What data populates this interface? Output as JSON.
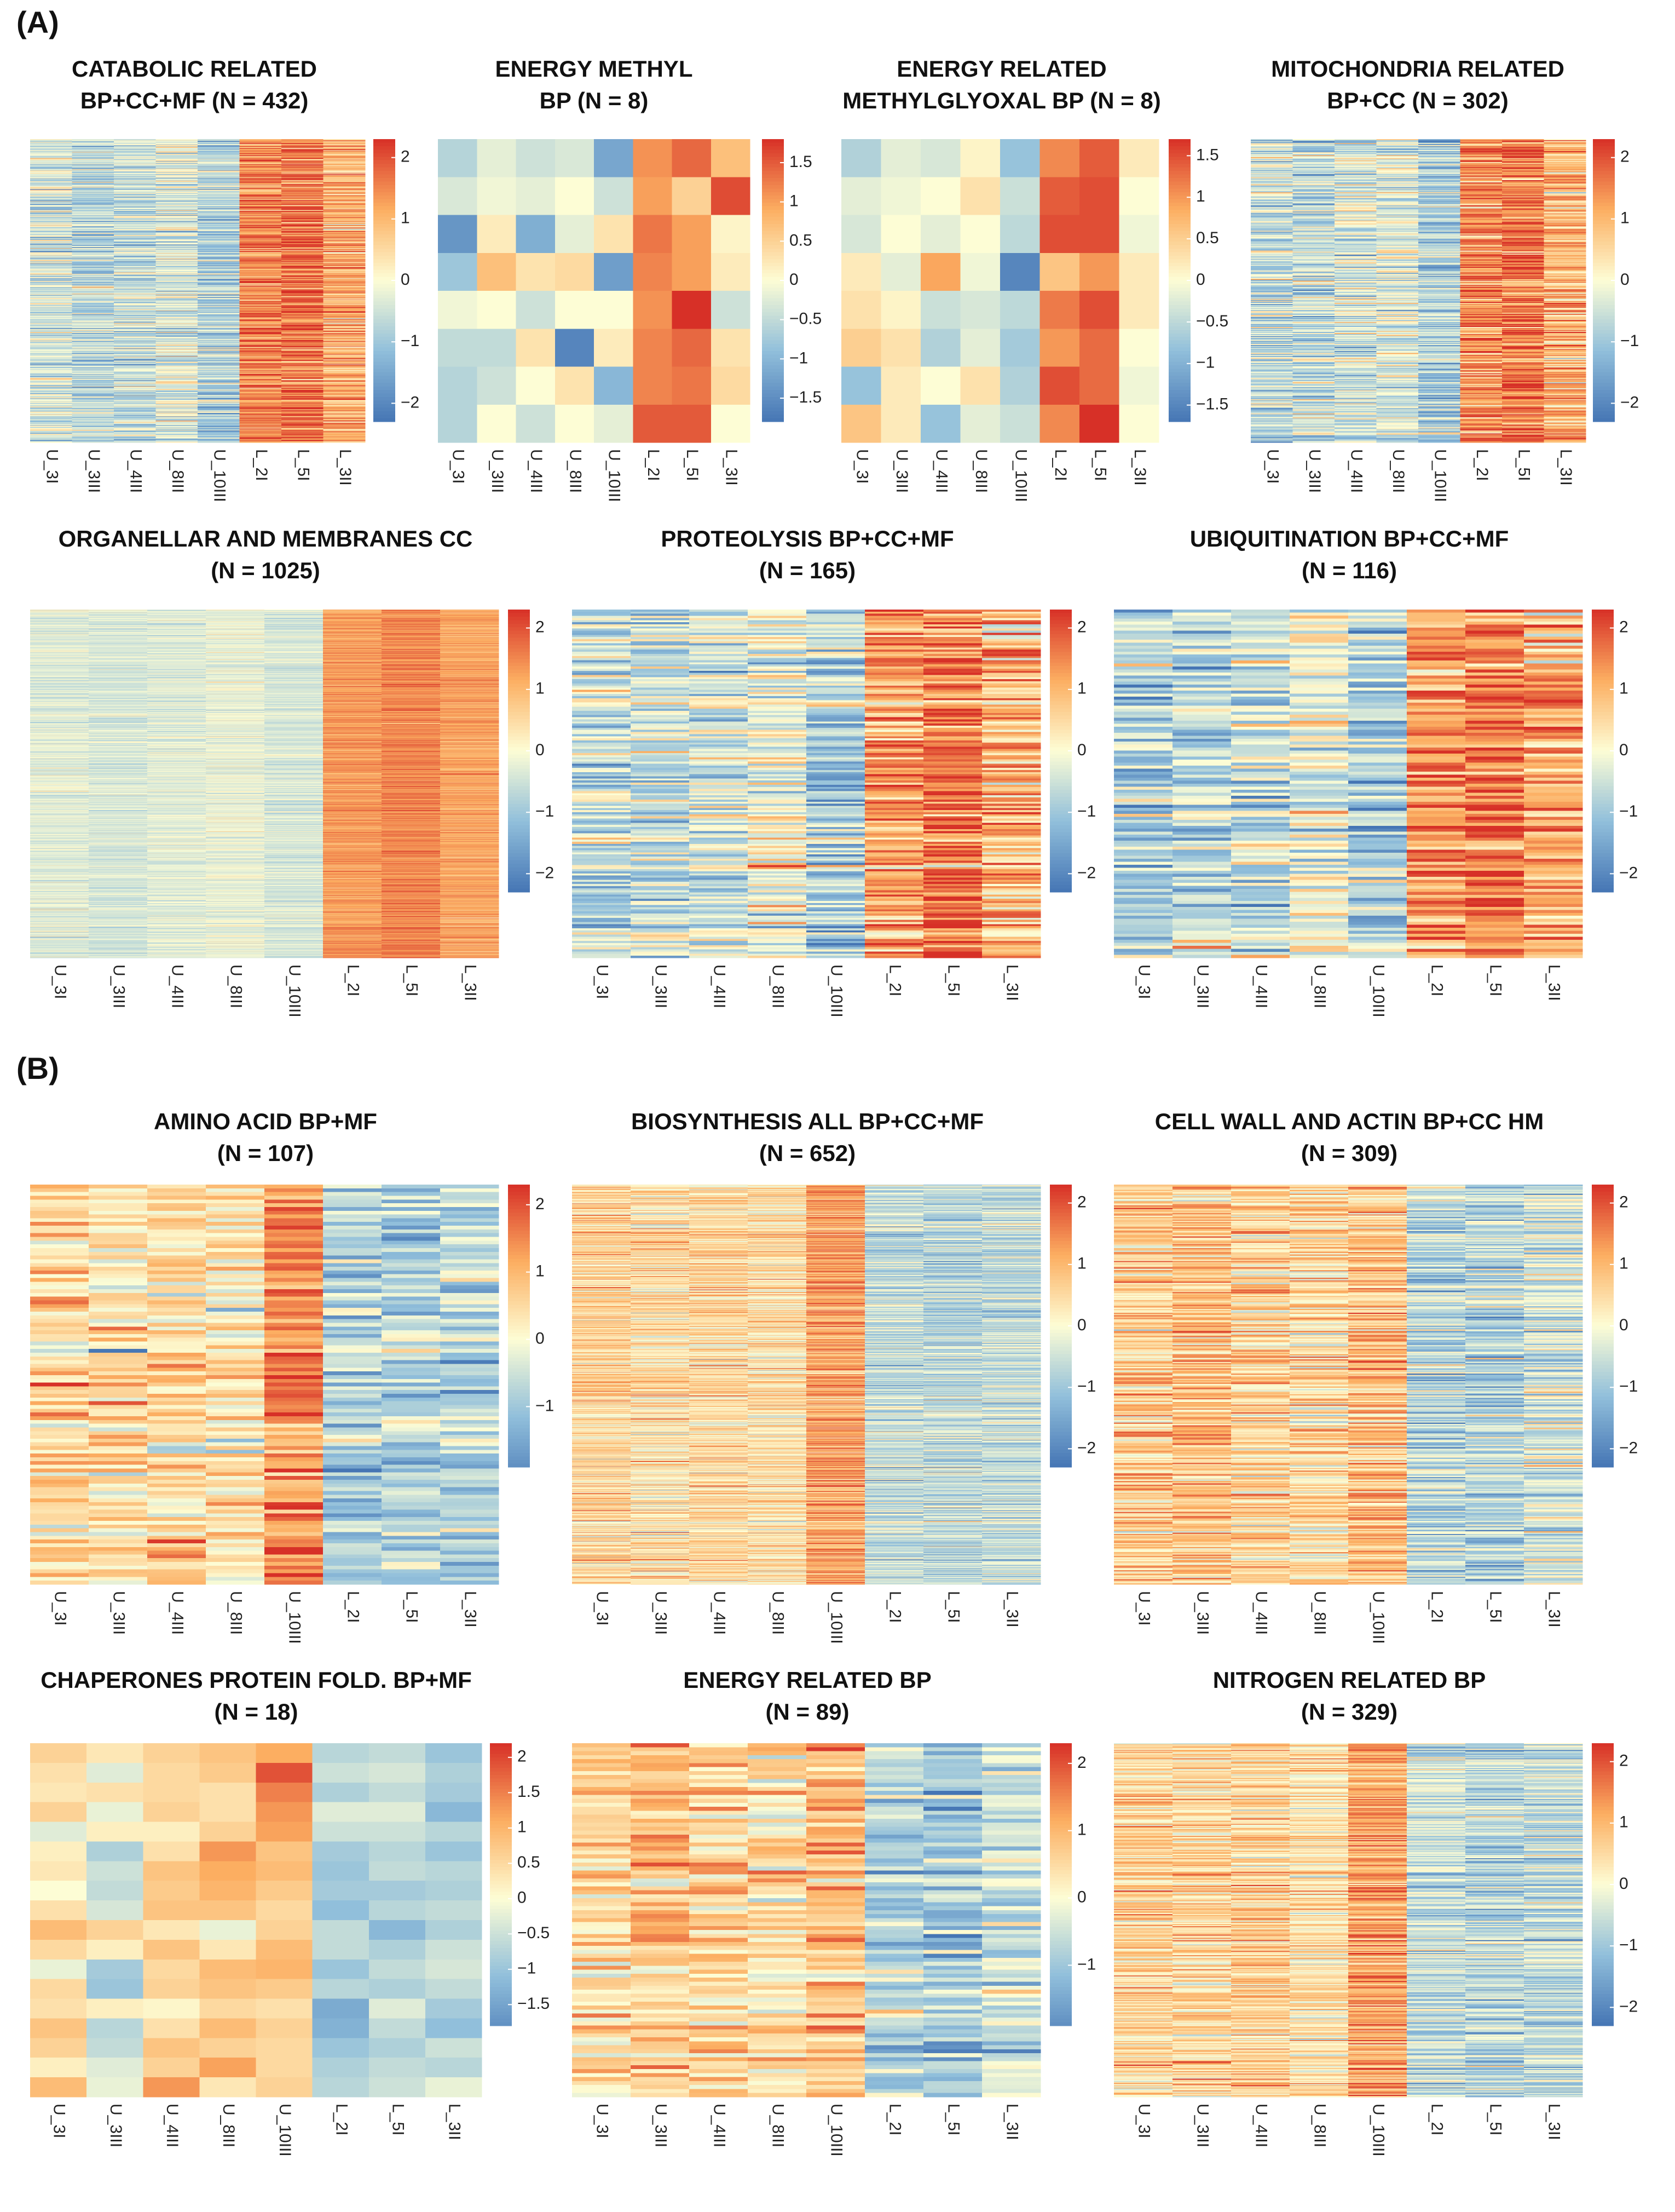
{
  "panels": [
    {
      "label": "(A)"
    },
    {
      "label": "(B)"
    }
  ],
  "chart_data": [
    {
      "type": "heatmap",
      "panel": "(A)",
      "title": [
        "CATABOLIC RELATED",
        "BP+CC+MF (N = 432)"
      ],
      "columns": [
        "U_3I",
        "U_3III",
        "U_4III",
        "U_8III",
        "U_10III",
        "L_2I",
        "L_5I",
        "L_3II"
      ],
      "n_rows": 432,
      "legend_ticks": [
        2,
        1,
        0,
        -1,
        -2
      ],
      "legend_range": [
        -2.3,
        2.3
      ],
      "column_means": [
        -0.5,
        -0.7,
        -0.6,
        -0.4,
        -0.8,
        1.5,
        1.7,
        1.1
      ],
      "row_noise": 0.5,
      "seed": 11
    },
    {
      "type": "heatmap",
      "panel": "(A)",
      "title": [
        "ENERGY METHYL",
        "BP (N = 8)"
      ],
      "columns": [
        "U_3I",
        "U_3III",
        "U_4III",
        "U_8III",
        "U_10III",
        "L_2I",
        "L_5I",
        "L_3II"
      ],
      "n_rows": 8,
      "legend_ticks": [
        1.5,
        1,
        0.5,
        0,
        -0.5,
        -1,
        -1.5
      ],
      "legend_range": [
        -1.8,
        1.8
      ],
      "values": [
        [
          -0.6,
          -0.2,
          -0.4,
          -0.3,
          -1.2,
          1.1,
          1.4,
          0.7
        ],
        [
          -0.3,
          -0.1,
          -0.2,
          0.0,
          -0.4,
          1.0,
          0.5,
          1.6
        ],
        [
          -1.4,
          0.2,
          -1.1,
          -0.2,
          0.3,
          1.3,
          1.0,
          0.1
        ],
        [
          -0.8,
          0.7,
          0.3,
          0.4,
          -1.3,
          1.2,
          1.0,
          0.2
        ],
        [
          -0.1,
          0.0,
          -0.4,
          0.0,
          0.0,
          1.1,
          1.8,
          -0.4
        ],
        [
          -0.5,
          -0.5,
          0.3,
          -1.6,
          0.2,
          1.2,
          1.4,
          0.3
        ],
        [
          -0.6,
          -0.4,
          0.0,
          0.3,
          -1.0,
          1.2,
          1.3,
          0.4
        ],
        [
          -0.6,
          0.0,
          -0.4,
          0.0,
          -0.2,
          1.5,
          1.5,
          0.0
        ]
      ]
    },
    {
      "type": "heatmap",
      "panel": "(A)",
      "title": [
        "ENERGY RELATED",
        "METHYLGLYOXAL BP (N = 8)"
      ],
      "columns": [
        "U_3I",
        "U_3III",
        "U_4III",
        "U_8III",
        "U_10III",
        "L_2I",
        "L_5I",
        "L_3II"
      ],
      "n_rows": 8,
      "legend_ticks": [
        1.5,
        1,
        0.5,
        0,
        -0.5,
        -1,
        -1.5
      ],
      "legend_range": [
        -1.7,
        1.7
      ],
      "values": [
        [
          -0.6,
          -0.2,
          -0.3,
          0.1,
          -0.8,
          1.1,
          1.4,
          0.2
        ],
        [
          -0.2,
          -0.1,
          0.0,
          0.3,
          -0.4,
          1.4,
          1.5,
          0.0
        ],
        [
          -0.3,
          0.0,
          -0.2,
          0.0,
          -0.5,
          1.5,
          1.5,
          -0.1
        ],
        [
          0.2,
          -0.2,
          0.9,
          -0.1,
          -1.5,
          0.6,
          1.0,
          0.2
        ],
        [
          0.3,
          0.1,
          -0.4,
          -0.3,
          -0.5,
          1.2,
          1.5,
          0.2
        ],
        [
          0.5,
          0.3,
          -0.6,
          -0.2,
          -0.7,
          1.0,
          1.3,
          0.0
        ],
        [
          -0.8,
          0.2,
          0.0,
          0.3,
          -0.6,
          1.5,
          1.3,
          -0.1
        ],
        [
          0.6,
          0.2,
          -0.8,
          -0.2,
          -0.4,
          1.1,
          1.7,
          0.0
        ]
      ]
    },
    {
      "type": "heatmap",
      "panel": "(A)",
      "title": [
        "MITOCHONDRIA RELATED",
        "BP+CC (N = 302)"
      ],
      "columns": [
        "U_3I",
        "U_3III",
        "U_4III",
        "U_8III",
        "U_10III",
        "L_2I",
        "L_5I",
        "L_3II"
      ],
      "n_rows": 302,
      "legend_ticks": [
        2,
        1,
        0,
        -1,
        -2
      ],
      "legend_range": [
        -2.3,
        2.3
      ],
      "column_means": [
        -0.6,
        -0.6,
        -0.5,
        -0.4,
        -0.9,
        1.4,
        1.6,
        1.0
      ],
      "row_noise": 0.55,
      "seed": 23
    },
    {
      "type": "heatmap",
      "panel": "(A)",
      "title": [
        "ORGANELLAR AND MEMBRANES CC",
        "(N = 1025)"
      ],
      "columns": [
        "U_3I",
        "U_3III",
        "U_4III",
        "U_8III",
        "U_10III",
        "L_2I",
        "L_5I",
        "L_3II"
      ],
      "n_rows": 1025,
      "legend_ticks": [
        2,
        1,
        0,
        -1,
        -2
      ],
      "legend_range": [
        -2.3,
        2.3
      ],
      "column_means": [
        -0.3,
        -0.4,
        -0.3,
        -0.2,
        -0.4,
        1.3,
        1.5,
        1.2
      ],
      "row_noise": 0.25,
      "seed": 37
    },
    {
      "type": "heatmap",
      "panel": "(A)",
      "title": [
        "PROTEOLYSIS BP+CC+MF",
        "(N = 165)"
      ],
      "columns": [
        "U_3I",
        "U_3III",
        "U_4III",
        "U_8III",
        "U_10III",
        "L_2I",
        "L_5I",
        "L_3II"
      ],
      "n_rows": 165,
      "legend_ticks": [
        2,
        1,
        0,
        -1,
        -2
      ],
      "legend_range": [
        -2.3,
        2.3
      ],
      "column_means": [
        -0.6,
        -0.6,
        -0.5,
        -0.2,
        -0.8,
        1.3,
        1.6,
        0.9
      ],
      "row_noise": 0.6,
      "seed": 41
    },
    {
      "type": "heatmap",
      "panel": "(A)",
      "title": [
        "UBIQUITINATION BP+CC+MF",
        "(N = 116)"
      ],
      "columns": [
        "U_3I",
        "U_3III",
        "U_4III",
        "U_8III",
        "U_10III",
        "L_2I",
        "L_5I",
        "L_3II"
      ],
      "n_rows": 116,
      "legend_ticks": [
        2,
        1,
        0,
        -1,
        -2
      ],
      "legend_range": [
        -2.3,
        2.3
      ],
      "column_means": [
        -0.7,
        -0.6,
        -0.5,
        -0.1,
        -0.8,
        1.3,
        1.5,
        1.0
      ],
      "row_noise": 0.6,
      "seed": 53
    },
    {
      "type": "heatmap",
      "panel": "(B)",
      "title": [
        "AMINO ACID BP+MF",
        "(N = 107)"
      ],
      "columns": [
        "U_3I",
        "U_3III",
        "U_4III",
        "U_8III",
        "U_10III",
        "L_2I",
        "L_5I",
        "L_3II"
      ],
      "n_rows": 107,
      "legend_ticks": [
        2,
        1,
        0,
        -1
      ],
      "legend_range": [
        -1.9,
        2.3
      ],
      "column_means": [
        0.5,
        0.5,
        0.6,
        0.3,
        1.5,
        -0.8,
        -0.9,
        -0.8
      ],
      "row_noise": 0.5,
      "seed": 61
    },
    {
      "type": "heatmap",
      "panel": "(B)",
      "title": [
        "BIOSYNTHESIS ALL BP+CC+MF",
        "(N = 652)"
      ],
      "columns": [
        "U_3I",
        "U_3III",
        "U_4III",
        "U_8III",
        "U_10III",
        "L_2I",
        "L_5I",
        "L_3II"
      ],
      "n_rows": 652,
      "legend_ticks": [
        2,
        1,
        0,
        -1,
        -2
      ],
      "legend_range": [
        -2.3,
        2.3
      ],
      "column_means": [
        0.6,
        0.4,
        0.5,
        0.4,
        1.2,
        -0.6,
        -0.7,
        -0.6
      ],
      "row_noise": 0.45,
      "seed": 71
    },
    {
      "type": "heatmap",
      "panel": "(B)",
      "title": [
        "CELL WALL AND ACTIN BP+CC HM",
        "(N = 309)"
      ],
      "columns": [
        "U_3I",
        "U_3III",
        "U_4III",
        "U_8III",
        "U_10III",
        "L_2I",
        "L_5I",
        "L_3II"
      ],
      "n_rows": 309,
      "legend_ticks": [
        2,
        1,
        0,
        -1,
        -2
      ],
      "legend_range": [
        -2.3,
        2.3
      ],
      "column_means": [
        0.7,
        0.8,
        0.6,
        0.5,
        0.9,
        -0.7,
        -0.8,
        -0.5
      ],
      "row_noise": 0.5,
      "seed": 83
    },
    {
      "type": "heatmap",
      "panel": "(B)",
      "title": [
        "CHAPERONES PROTEIN FOLD. BP+MF",
        "(N = 18)"
      ],
      "columns": [
        "U_3I",
        "U_3III",
        "U_4III",
        "U_8III",
        "U_10III",
        "L_2I",
        "L_5I",
        "L_3II"
      ],
      "n_rows": 18,
      "legend_ticks": [
        2,
        1.5,
        1,
        0.5,
        0,
        -0.5,
        -1,
        -1.5
      ],
      "legend_range": [
        -1.8,
        2.2
      ],
      "values": [
        [
          0.6,
          0.3,
          0.6,
          0.8,
          1.1,
          -0.7,
          -0.6,
          -1.0
        ],
        [
          0.4,
          -0.3,
          0.5,
          0.7,
          1.9,
          -0.5,
          -0.4,
          -0.8
        ],
        [
          0.3,
          0.4,
          0.5,
          0.4,
          1.5,
          -0.8,
          -0.6,
          -0.9
        ],
        [
          0.6,
          -0.2,
          0.6,
          0.4,
          1.3,
          -0.3,
          -0.3,
          -1.2
        ],
        [
          -0.3,
          0.2,
          0.2,
          0.6,
          1.2,
          -0.5,
          -0.5,
          -0.7
        ],
        [
          0.2,
          -0.8,
          0.4,
          1.3,
          0.8,
          -0.9,
          -0.7,
          -1.0
        ],
        [
          0.3,
          -0.5,
          0.8,
          1.1,
          0.9,
          -1.0,
          -0.6,
          -0.7
        ],
        [
          0.0,
          -0.6,
          0.7,
          1.0,
          0.7,
          -0.9,
          -0.9,
          -0.8
        ],
        [
          0.4,
          -0.4,
          0.8,
          0.8,
          0.5,
          -1.1,
          -0.7,
          -0.6
        ],
        [
          0.9,
          0.6,
          0.3,
          -0.2,
          0.6,
          -0.6,
          -1.2,
          -0.8
        ],
        [
          0.5,
          0.2,
          0.8,
          0.3,
          0.9,
          -0.6,
          -0.8,
          -0.5
        ],
        [
          -0.2,
          -0.9,
          0.5,
          0.9,
          1.0,
          -1.0,
          -0.6,
          -0.4
        ],
        [
          0.5,
          -1.0,
          0.6,
          0.8,
          0.7,
          -0.7,
          -0.8,
          -0.6
        ],
        [
          0.4,
          0.2,
          0.1,
          0.5,
          0.4,
          -1.4,
          -0.3,
          -0.9
        ],
        [
          0.8,
          -0.7,
          0.4,
          0.9,
          0.6,
          -1.3,
          -0.6,
          -1.1
        ],
        [
          0.6,
          -0.6,
          0.8,
          0.6,
          0.5,
          -1.0,
          -0.8,
          -0.5
        ],
        [
          0.2,
          -0.3,
          0.6,
          1.2,
          0.5,
          -0.8,
          -0.6,
          -0.7
        ],
        [
          0.9,
          -0.2,
          1.3,
          0.3,
          0.6,
          -0.7,
          -0.5,
          -0.2
        ]
      ]
    },
    {
      "type": "heatmap",
      "panel": "(B)",
      "title": [
        "ENERGY RELATED BP",
        "(N = 89)"
      ],
      "columns": [
        "U_3I",
        "U_3III",
        "U_4III",
        "U_8III",
        "U_10III",
        "L_2I",
        "L_5I",
        "L_3II"
      ],
      "n_rows": 89,
      "legend_ticks": [
        2,
        1,
        0,
        -1
      ],
      "legend_range": [
        -1.9,
        2.3
      ],
      "column_means": [
        0.5,
        0.8,
        0.6,
        0.4,
        0.9,
        -0.8,
        -1.0,
        -0.6
      ],
      "row_noise": 0.5,
      "seed": 97
    },
    {
      "type": "heatmap",
      "panel": "(B)",
      "title": [
        "NITROGEN RELATED BP",
        "(N = 329)"
      ],
      "columns": [
        "U_3I",
        "U_3III",
        "U_4III",
        "U_8III",
        "U_10III",
        "L_2I",
        "L_5I",
        "L_3II"
      ],
      "n_rows": 329,
      "legend_ticks": [
        2,
        1,
        0,
        -1,
        -2
      ],
      "legend_range": [
        -2.3,
        2.3
      ],
      "column_means": [
        0.6,
        0.5,
        0.6,
        0.4,
        1.2,
        -0.6,
        -0.7,
        -0.6
      ],
      "row_noise": 0.45,
      "seed": 103
    }
  ]
}
